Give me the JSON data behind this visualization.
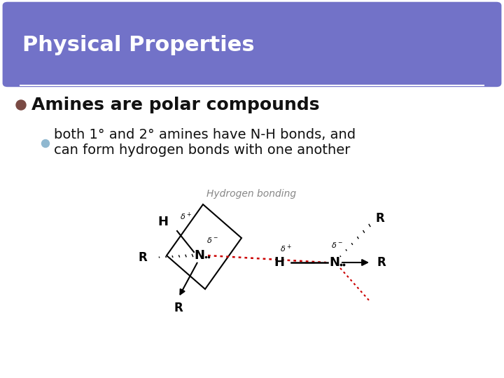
{
  "title": "Physical Properties",
  "title_bg_color": "#7272c8",
  "title_text_color": "#ffffff",
  "title_font_size": 22,
  "slide_bg_color": "#ffffff",
  "border_color": "#6fa0a8",
  "bullet1_text": "Amines are polar compounds",
  "bullet1_color": "#111111",
  "bullet1_dot_color": "#7a4a44",
  "bullet1_fontsize": 18,
  "bullet2_text1": "both 1° and 2° amines have N-H bonds, and",
  "bullet2_text2": "can form hydrogen bonds with one another",
  "bullet2_color": "#111111",
  "bullet2_dot_color": "#90b8d0",
  "bullet2_fontsize": 14,
  "diagram_label": "Hydrogen bonding",
  "diagram_label_color": "#888888",
  "diagram_label_fontsize": 10
}
